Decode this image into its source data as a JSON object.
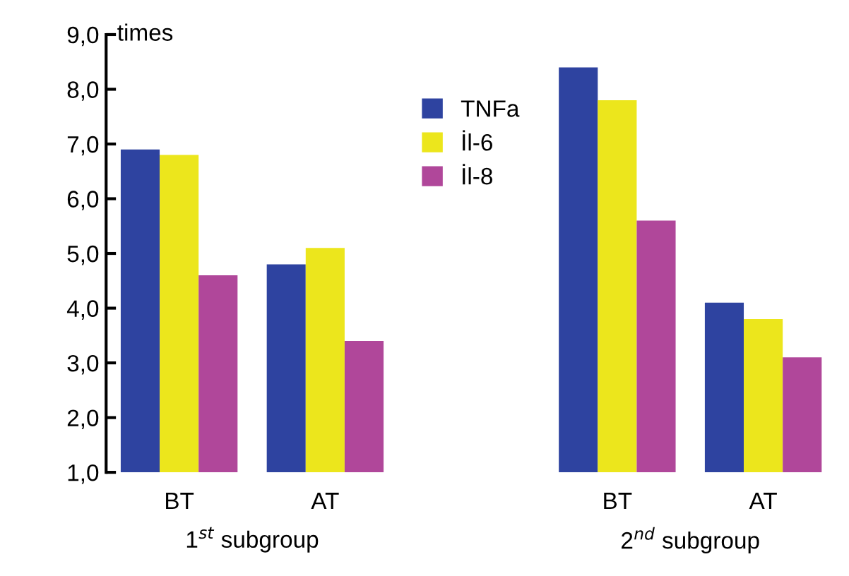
{
  "chart_data": {
    "type": "bar",
    "ylabel": "times",
    "categories": [
      "BT",
      "AT",
      null,
      "BT",
      "AT"
    ],
    "series": [
      {
        "name": "TNFa",
        "color": "#2e43a0",
        "values": [
          6.9,
          4.8,
          null,
          8.4,
          4.1
        ]
      },
      {
        "name": "İl-6",
        "color": "#ece61c",
        "values": [
          6.8,
          5.1,
          null,
          7.8,
          3.8
        ]
      },
      {
        "name": "İl-8",
        "color": "#b0479a",
        "values": [
          4.6,
          3.4,
          null,
          5.6,
          3.1
        ]
      }
    ],
    "ylim": [
      1,
      9
    ],
    "yticks": [
      {
        "value": 1,
        "label": "1,0"
      },
      {
        "value": 2,
        "label": "2,0"
      },
      {
        "value": 3,
        "label": "3,0"
      },
      {
        "value": 4,
        "label": "4,0"
      },
      {
        "value": 5,
        "label": "5,0"
      },
      {
        "value": 6,
        "label": "6,0"
      },
      {
        "value": 7,
        "label": "7,0"
      },
      {
        "value": 8,
        "label": "8,0"
      },
      {
        "value": 9,
        "label": "9,0"
      }
    ],
    "annotations": [
      "1$^{st}$ subgroup",
      "2$^{nd}$ subgroup"
    ],
    "grid": false,
    "legend": "top"
  }
}
